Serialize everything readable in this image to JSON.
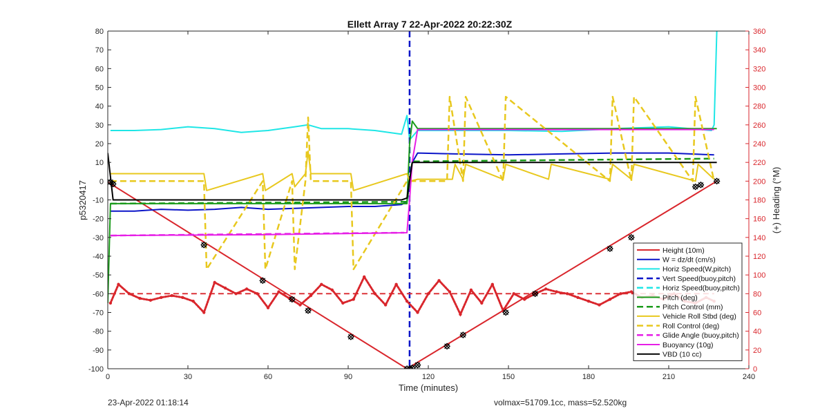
{
  "chart_data": {
    "type": "line",
    "title": "Ellett Array 7 22-Apr-2022 20:22:30Z",
    "xlabel": "Time (minutes)",
    "ylabel": "p5320417",
    "y2label": "(+) Heading (°M)",
    "xlim": [
      0,
      240
    ],
    "ylim": [
      -100,
      80
    ],
    "y2lim": [
      0,
      360
    ],
    "xticks": [
      0,
      30,
      60,
      90,
      120,
      150,
      180,
      210,
      240
    ],
    "yticks": [
      -100,
      -90,
      -80,
      -70,
      -60,
      -50,
      -40,
      -30,
      -20,
      -10,
      0,
      10,
      20,
      30,
      40,
      50,
      60,
      70,
      80
    ],
    "y2ticks": [
      0,
      20,
      40,
      60,
      80,
      100,
      120,
      140,
      160,
      180,
      200,
      220,
      240,
      260,
      280,
      300,
      320,
      340,
      360
    ],
    "grid": false,
    "legend_position": "bottom-right",
    "colors": {
      "red": "#d9262c",
      "blue": "#0a14c8",
      "cyan": "#1ee6e6",
      "green": "#1a9a1a",
      "yellow": "#e8c81e",
      "magenta": "#e61ee6",
      "black": "#000000"
    },
    "series": [
      {
        "name": "Height (10m)",
        "color": "#d9262c",
        "style": "solid",
        "axis": "left",
        "x": [
          0,
          112,
          228
        ],
        "y": [
          -0.5,
          -100,
          0
        ]
      },
      {
        "name": "W = dz/dt (cm/s)",
        "color": "#0a14c8",
        "style": "solid",
        "axis": "left",
        "x": [
          1,
          10,
          20,
          30,
          40,
          50,
          60,
          70,
          80,
          90,
          100,
          110,
          112,
          114,
          116,
          130,
          150,
          170,
          190,
          210,
          227
        ],
        "y": [
          -16,
          -16,
          -15,
          -15.5,
          -15,
          -14,
          -15,
          -14.5,
          -14,
          -13.5,
          -13.5,
          -12.5,
          -11,
          10,
          15,
          14.5,
          14,
          14.5,
          15,
          15,
          14
        ]
      },
      {
        "name": "Horiz Speed(W,pitch)",
        "color": "#1ee6e6",
        "style": "solid",
        "axis": "left",
        "x": [
          1,
          10,
          20,
          30,
          40,
          50,
          60,
          70,
          75,
          80,
          90,
          100,
          110,
          112,
          113,
          116,
          130,
          150,
          170,
          190,
          210,
          226,
          227,
          228
        ],
        "y": [
          27,
          27,
          27.5,
          29,
          28,
          26,
          27,
          29,
          30,
          28,
          28,
          27,
          25,
          35,
          22,
          27,
          27,
          27,
          26.5,
          28,
          29,
          27,
          30,
          80
        ]
      },
      {
        "name": "Vert Speed(buoy,pitch)",
        "color": "#0a14c8",
        "style": "dashed",
        "axis": "left",
        "x": [
          113,
          113
        ],
        "y": [
          80,
          -100
        ]
      },
      {
        "name": "Horiz Speed(buoy,pitch)",
        "color": "#1ee6e6",
        "style": "dashed",
        "axis": "left",
        "x": [],
        "y": []
      },
      {
        "name": "Pitch (deg)",
        "color": "#1a9a1a",
        "style": "solid",
        "axis": "left",
        "x": [
          0,
          1,
          112,
          113,
          114,
          116,
          227,
          228
        ],
        "y": [
          -65,
          -12,
          -12,
          20,
          32,
          28,
          28,
          28
        ]
      },
      {
        "name": "Pitch Control (mm)",
        "color": "#1a9a1a",
        "style": "dashed",
        "axis": "left",
        "x": [
          1,
          112,
          113,
          114,
          227
        ],
        "y": [
          -12,
          -11,
          0,
          10.5,
          12
        ]
      },
      {
        "name": "Vehicle Roll Stbd (deg)",
        "color": "#e8c81e",
        "style": "solid",
        "axis": "left",
        "x": [
          1,
          36,
          37,
          58,
          59,
          69,
          70,
          74,
          75,
          76,
          91,
          92,
          112,
          113,
          116,
          129,
          130,
          133,
          134,
          148,
          149,
          165,
          166,
          188,
          189,
          196,
          197,
          220,
          221,
          227
        ],
        "y": [
          4,
          4,
          -5,
          4,
          -5,
          4,
          -3,
          4,
          16,
          4,
          4,
          -5,
          4,
          0,
          1,
          1,
          9,
          1,
          9,
          1,
          9,
          1,
          9,
          1,
          9,
          1,
          9,
          0,
          9,
          1
        ]
      },
      {
        "name": "Roll Control (deg)",
        "color": "#e8c81e",
        "style": "dashed",
        "axis": "left",
        "x": [
          1,
          36,
          37,
          58,
          59,
          69,
          70,
          74,
          75,
          76,
          91,
          92,
          112,
          116,
          127,
          128,
          133,
          134,
          148,
          149,
          188,
          189,
          196,
          197,
          219,
          220,
          227
        ],
        "y": [
          0,
          0,
          -47,
          0,
          -47,
          0,
          -47,
          0,
          34,
          0,
          0,
          -47,
          0,
          0,
          0,
          45,
          0,
          45,
          0,
          45,
          0,
          45,
          0,
          45,
          0,
          45,
          0
        ]
      },
      {
        "name": "Glide Angle (buoy,pitch)",
        "color": "#e61ee6",
        "style": "dashed",
        "axis": "left",
        "x": [
          1,
          111
        ],
        "y": [
          -29,
          -27.5
        ]
      },
      {
        "name": "Buoyancy (10g)",
        "color": "#e61ee6",
        "style": "solid",
        "axis": "left",
        "x": [
          1,
          60,
          112,
          113,
          114,
          116,
          227
        ],
        "y": [
          -29,
          -28.5,
          -27.5,
          -10,
          10.5,
          27.5,
          27.5
        ]
      },
      {
        "name": "VBD (10 cc)",
        "color": "#000000",
        "style": "solid",
        "axis": "left",
        "x": [
          0,
          2,
          110,
          112,
          114,
          116,
          228
        ],
        "y": [
          15,
          -10,
          -10,
          -9,
          10,
          10,
          10
        ]
      }
    ],
    "heading": {
      "color": "#d9262c",
      "axis": "right",
      "x": [
        1,
        4,
        8,
        12,
        16,
        20,
        24,
        28,
        32,
        36,
        40,
        44,
        48,
        52,
        56,
        60,
        64,
        68,
        72,
        76,
        80,
        84,
        88,
        92,
        96,
        100,
        104,
        108,
        112,
        116,
        120,
        124,
        128,
        132,
        136,
        140,
        144,
        148,
        152,
        156,
        160,
        164,
        168,
        172,
        176,
        180,
        184,
        188,
        192,
        196,
        200,
        204,
        208,
        212,
        216,
        220,
        224,
        227
      ],
      "y": [
        70,
        90,
        80,
        75,
        73,
        76,
        78,
        76,
        72,
        60,
        92,
        86,
        80,
        85,
        80,
        65,
        82,
        75,
        68,
        78,
        90,
        84,
        70,
        74,
        98,
        80,
        68,
        90,
        72,
        60,
        80,
        94,
        82,
        58,
        84,
        70,
        90,
        62,
        80,
        74,
        80,
        85,
        82,
        80,
        76,
        72,
        68,
        74,
        80,
        82,
        76,
        78,
        74,
        80,
        72,
        70,
        76,
        72
      ]
    },
    "heading_reference": {
      "y2": 80,
      "style": "dashed"
    },
    "markers": {
      "x": [
        1,
        2,
        36,
        58,
        69,
        75,
        91,
        112,
        113,
        114,
        116,
        127,
        133,
        149,
        160,
        188,
        196,
        220,
        222,
        228
      ],
      "y": [
        -0.5,
        -1.5,
        -34,
        -53,
        -63,
        -69,
        -83,
        -100,
        -100,
        -99.5,
        -98,
        -88,
        -82,
        -70,
        -60,
        -36,
        -30,
        -3,
        -2,
        0
      ]
    }
  },
  "footer": {
    "left": "23-Apr-2022 01:18:14",
    "right": "volmax=51709.1cc, mass=52.520kg"
  }
}
